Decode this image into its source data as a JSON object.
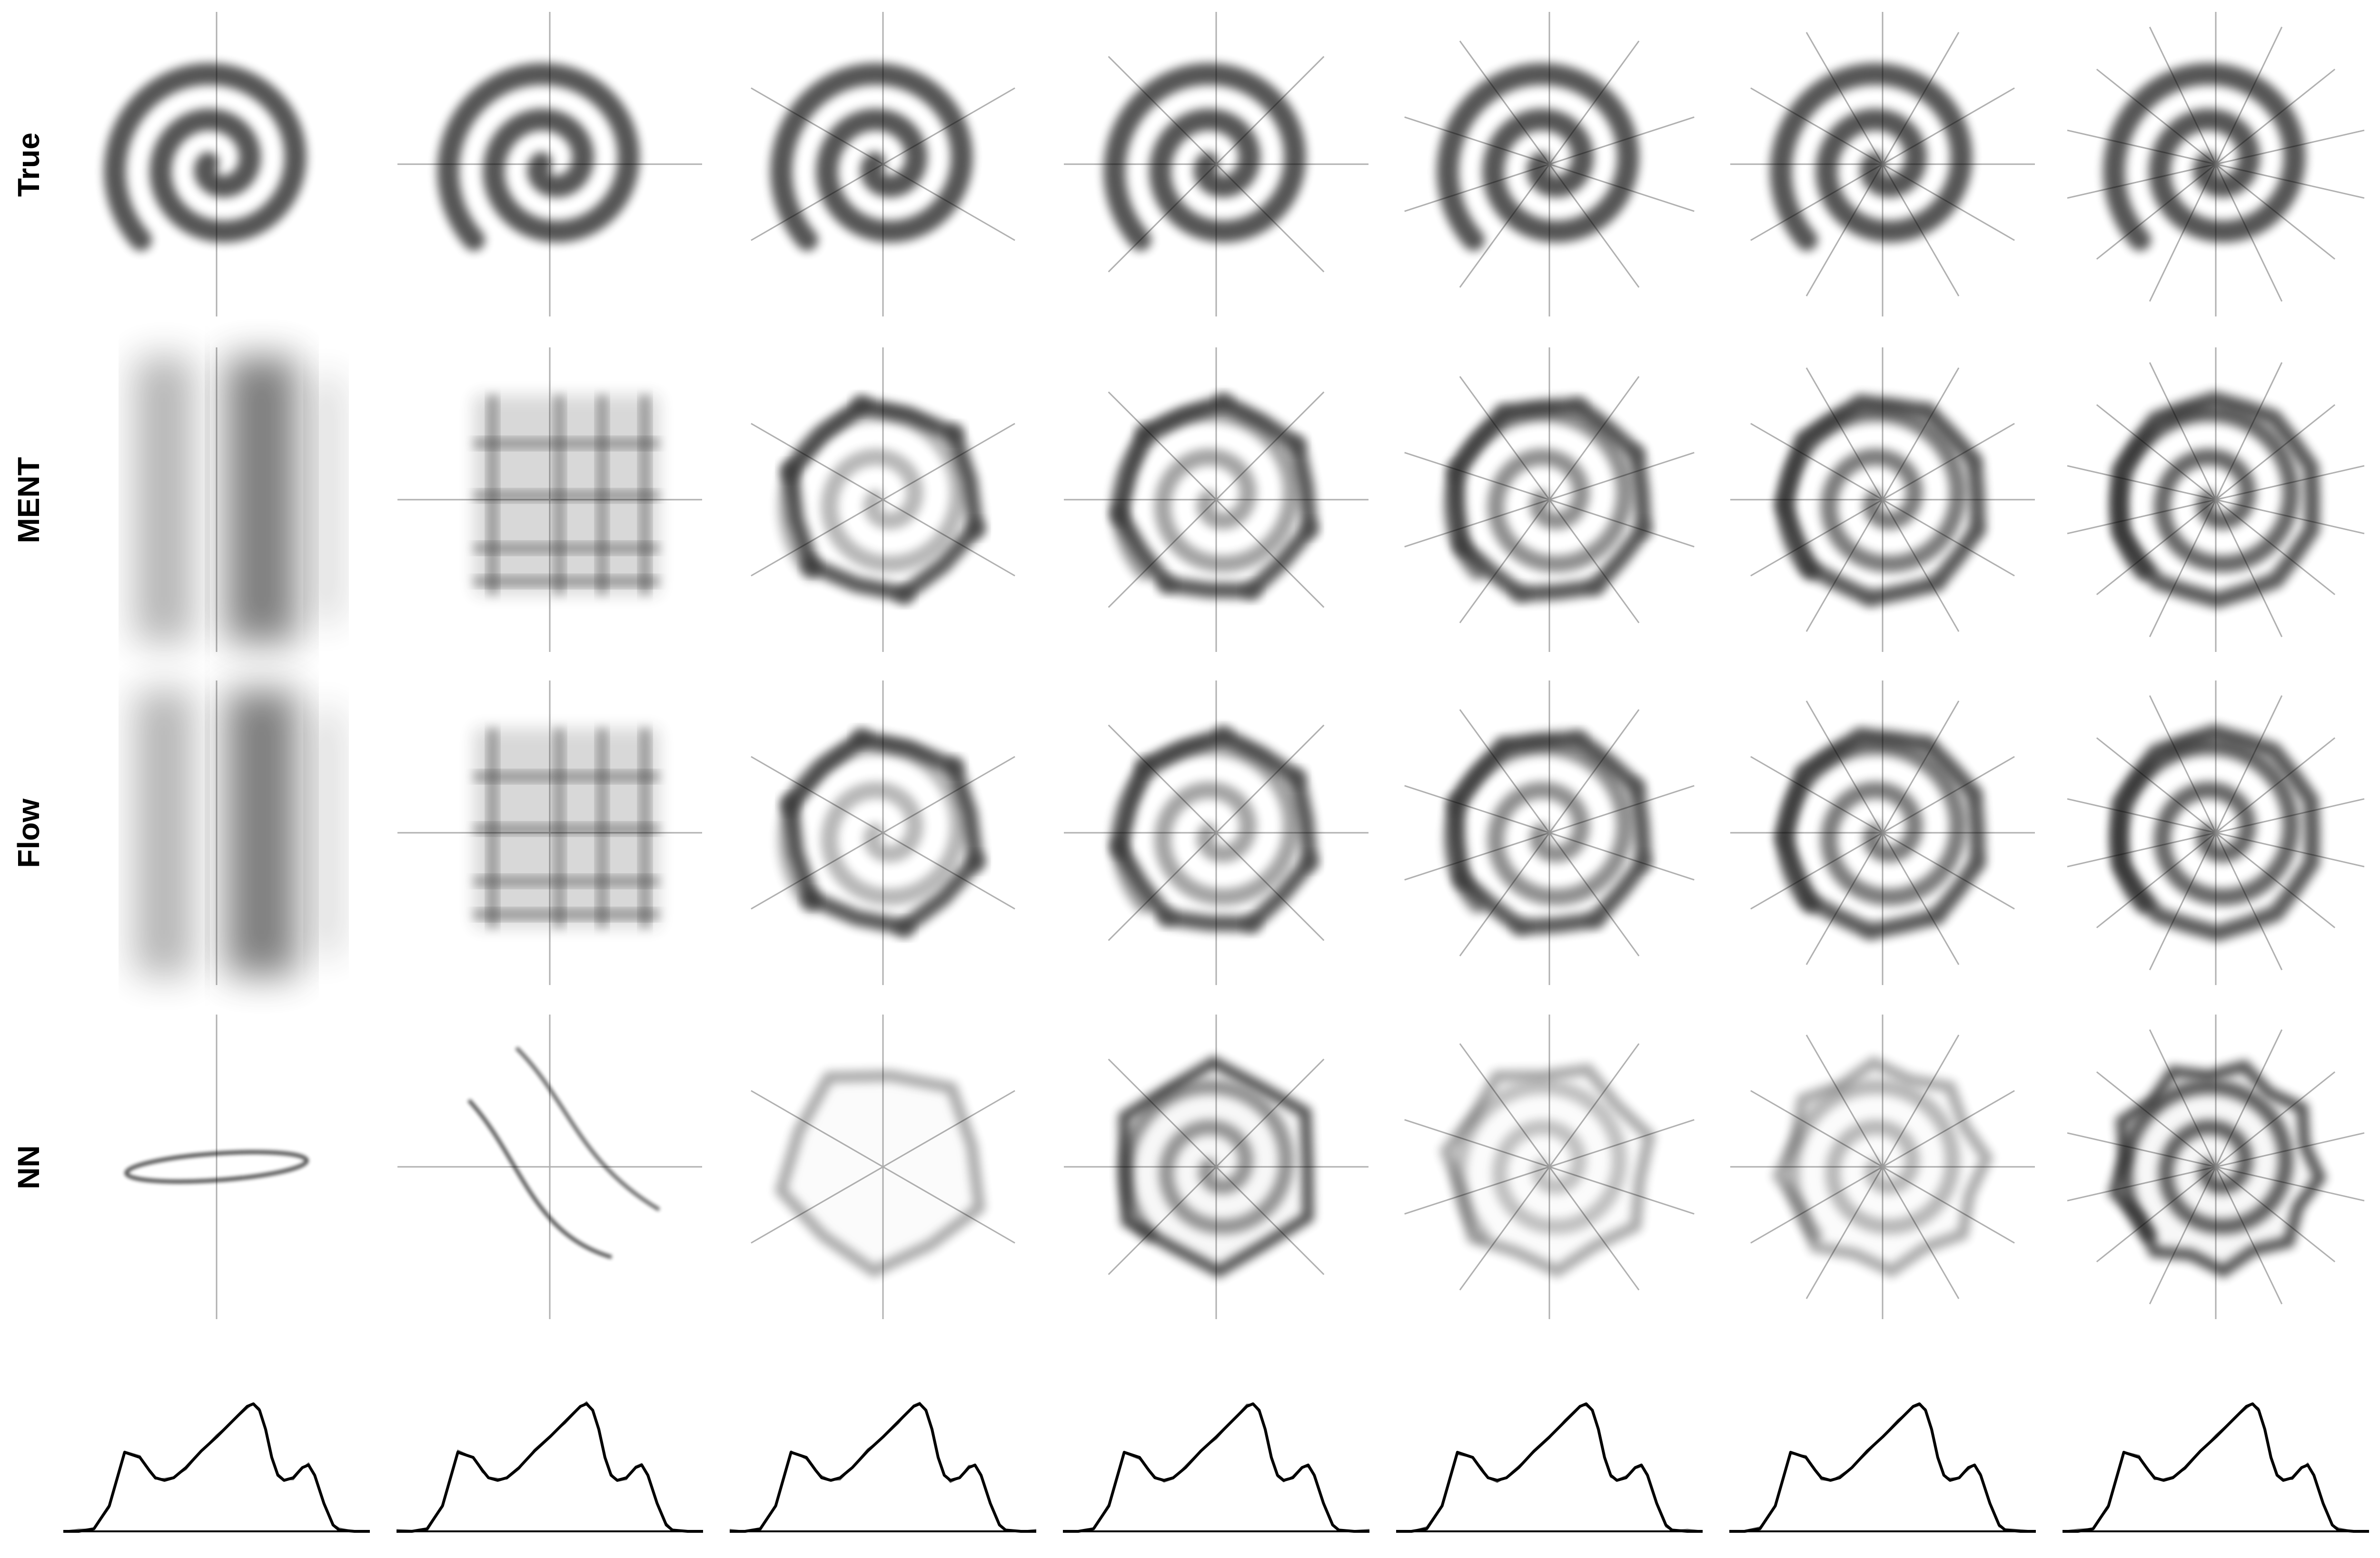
{
  "figure": {
    "row_labels": [
      "True",
      "MENT",
      "Flow",
      "NN",
      ""
    ],
    "num_columns": 7,
    "projection_angles_per_column": [
      1,
      2,
      3,
      4,
      5,
      6,
      7
    ],
    "colors": {
      "density": "#000000",
      "axis_line": "#b0b0b0",
      "profile_line": "#000000",
      "baseline": "#000000",
      "background": "#ffffff"
    }
  },
  "chart_data": {
    "type": "line",
    "description_series": "1D projected density profile",
    "series": [
      {
        "name": "",
        "x": [
          0,
          0.05,
          0.1,
          0.15,
          0.2,
          0.25,
          0.28,
          0.3,
          0.33,
          0.36,
          0.4,
          0.45,
          0.5,
          0.55,
          0.6,
          0.62,
          0.64,
          0.66,
          0.68,
          0.7,
          0.72,
          0.75,
          0.78,
          0.8,
          0.82,
          0.85,
          0.88,
          0.9,
          0.95,
          1.0
        ],
        "y": [
          0,
          0.0,
          0.02,
          0.2,
          0.62,
          0.58,
          0.48,
          0.42,
          0.4,
          0.42,
          0.5,
          0.63,
          0.74,
          0.86,
          0.98,
          1.0,
          0.95,
          0.8,
          0.58,
          0.44,
          0.4,
          0.42,
          0.5,
          0.52,
          0.44,
          0.22,
          0.05,
          0.01,
          0.0,
          0
        ]
      }
    ]
  }
}
